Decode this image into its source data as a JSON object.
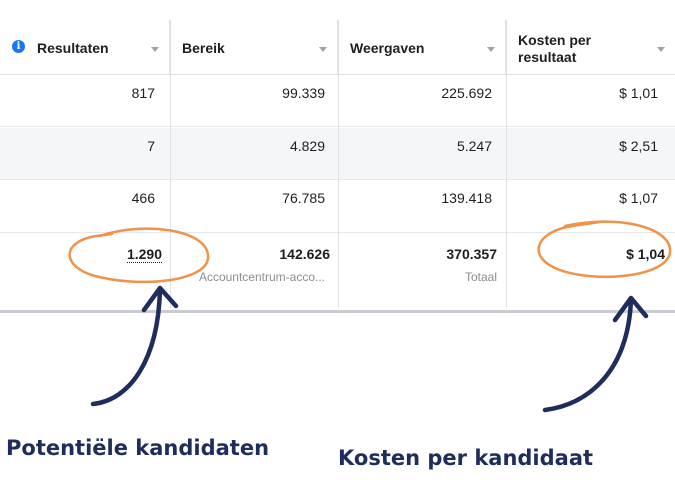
{
  "table": {
    "columns": [
      {
        "label": "Resultaten",
        "icon": "info-icon"
      },
      {
        "label": "Bereik"
      },
      {
        "label": "Weergaven"
      },
      {
        "label_line1": "Kosten per",
        "label_line2": "resultaat"
      }
    ],
    "rows": [
      {
        "resultaten": "817",
        "bereik": "99.339",
        "weergaven": "225.692",
        "kosten": "$ 1,01"
      },
      {
        "resultaten": "7",
        "bereik": "4.829",
        "weergaven": "5.247",
        "kosten": "$ 2,51"
      },
      {
        "resultaten": "466",
        "bereik": "76.785",
        "weergaven": "139.418",
        "kosten": "$ 1,07"
      }
    ],
    "totals": {
      "resultaten": "1.290",
      "bereik": "142.626",
      "bereik_sub": "Accountcentrum-acco...",
      "weergaven": "370.357",
      "weergaven_sub": "Totaal",
      "kosten": "$ 1,04"
    }
  },
  "annotations": {
    "left_caption": "Potentiële kandidaten",
    "right_caption": "Kosten per kandidaat",
    "circle_color": "#f0924a",
    "arrow_color": "#1e2d5c"
  }
}
